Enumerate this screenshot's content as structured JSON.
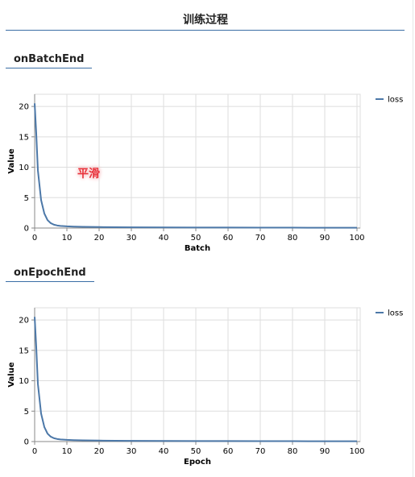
{
  "page": {
    "title": "训练过程",
    "smooth_label": "平滑"
  },
  "sections": [
    {
      "tab_label": "onBatchEnd"
    },
    {
      "tab_label": "onEpochEnd"
    }
  ],
  "chart_data": [
    {
      "type": "line",
      "xlabel": "Batch",
      "ylabel": "Value",
      "xlim": [
        0,
        101
      ],
      "ylim": [
        0,
        22
      ],
      "xticks": [
        0,
        10,
        20,
        30,
        40,
        50,
        60,
        70,
        80,
        90,
        100
      ],
      "yticks": [
        0,
        5,
        10,
        15,
        20
      ],
      "grid": true,
      "legend": "top-right",
      "series": [
        {
          "name": "loss",
          "color": "#4c78a8",
          "x": [
            0,
            0.5,
            1,
            2,
            3,
            4,
            5,
            6,
            7,
            8,
            10,
            12,
            15,
            20,
            25,
            30,
            40,
            50,
            60,
            70,
            80,
            90,
            100
          ],
          "y": [
            20.5,
            15.5,
            9.5,
            4.6,
            2.4,
            1.3,
            0.8,
            0.55,
            0.42,
            0.35,
            0.28,
            0.24,
            0.2,
            0.16,
            0.14,
            0.12,
            0.1,
            0.09,
            0.08,
            0.07,
            0.06,
            0.05,
            0.05
          ]
        }
      ]
    },
    {
      "type": "line",
      "xlabel": "Epoch",
      "ylabel": "Value",
      "xlim": [
        0,
        101
      ],
      "ylim": [
        0,
        22
      ],
      "xticks": [
        0,
        10,
        20,
        30,
        40,
        50,
        60,
        70,
        80,
        90,
        100
      ],
      "yticks": [
        0,
        5,
        10,
        15,
        20
      ],
      "grid": true,
      "legend": "top-right",
      "series": [
        {
          "name": "loss",
          "color": "#4c78a8",
          "x": [
            0,
            0.5,
            1,
            2,
            3,
            4,
            5,
            6,
            7,
            8,
            10,
            12,
            15,
            20,
            25,
            30,
            40,
            50,
            60,
            70,
            80,
            90,
            100
          ],
          "y": [
            20.5,
            15.5,
            9.5,
            4.6,
            2.4,
            1.3,
            0.8,
            0.55,
            0.42,
            0.35,
            0.28,
            0.24,
            0.2,
            0.16,
            0.14,
            0.12,
            0.1,
            0.09,
            0.08,
            0.07,
            0.06,
            0.05,
            0.05
          ]
        }
      ]
    }
  ]
}
